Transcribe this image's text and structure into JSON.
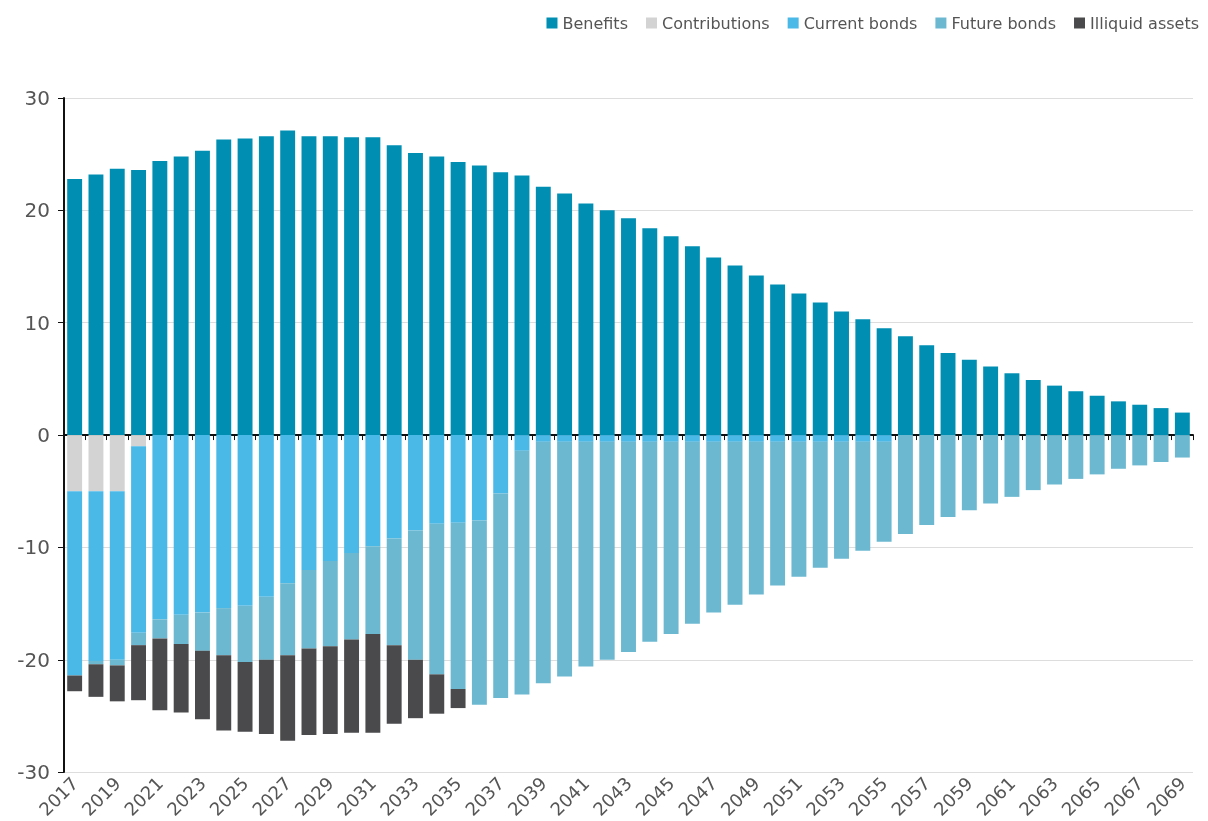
{
  "chart_data": {
    "type": "bar",
    "stacked": true,
    "grid": "y",
    "legend": "top right",
    "categories": [
      "2017",
      null,
      "2019",
      null,
      "2021",
      null,
      "2023",
      null,
      "2025",
      null,
      "2027",
      null,
      "2029",
      null,
      "2031",
      null,
      "2033",
      null,
      "2035",
      null,
      "2037",
      null,
      "2039",
      null,
      "2041",
      null,
      "2043",
      null,
      "2045",
      null,
      "2047",
      null,
      "2049",
      null,
      "2051",
      null,
      "2053",
      null,
      "2055",
      null,
      "2057",
      null,
      "2059",
      null,
      "2061",
      null,
      "2063",
      null,
      "2065",
      null,
      "2067",
      null,
      "2069"
    ],
    "ylim": [
      -30,
      30
    ],
    "yticks": [
      -30,
      -20,
      -10,
      0,
      10,
      20,
      30
    ],
    "series": [
      {
        "name": "Benefits",
        "color": "#008fb3",
        "values": [
          22.8,
          23.2,
          23.7,
          23.6,
          24.4,
          24.8,
          25.3,
          26.3,
          26.4,
          26.6,
          27.1,
          26.6,
          26.6,
          26.5,
          26.5,
          25.8,
          25.1,
          24.8,
          24.3,
          24.0,
          23.4,
          23.1,
          22.1,
          21.5,
          20.6,
          20.0,
          19.3,
          18.4,
          17.7,
          16.8,
          15.8,
          15.1,
          14.2,
          13.4,
          12.6,
          11.8,
          11.0,
          10.3,
          9.5,
          8.8,
          8.0,
          7.3,
          6.7,
          6.1,
          5.5,
          4.9,
          4.4,
          3.9,
          3.5,
          3.0,
          2.7,
          2.4,
          2.0
        ]
      },
      {
        "name": "Contributions",
        "color": "#d3d3d3",
        "values": [
          -5.0,
          -5.0,
          -5.0,
          -1.0,
          0,
          0,
          0,
          0,
          0,
          0,
          0,
          0,
          0,
          0,
          0,
          0,
          0,
          0,
          0,
          0,
          0,
          0,
          0,
          0,
          0,
          0,
          0,
          0,
          0,
          0,
          0,
          0,
          0,
          0,
          0,
          0,
          0,
          0,
          0,
          0,
          0,
          0,
          0,
          0,
          0,
          0,
          0,
          0,
          0,
          0,
          0,
          0,
          0
        ]
      },
      {
        "name": "Current bonds",
        "color": "#4bb9e8",
        "values": [
          -16.4,
          -15.1,
          -15.0,
          -16.6,
          -16.4,
          -16.0,
          -15.8,
          -15.4,
          -15.2,
          -14.4,
          -13.2,
          -12.0,
          -11.2,
          -10.5,
          -9.9,
          -9.2,
          -8.5,
          -7.9,
          -7.8,
          -7.6,
          -5.2,
          -1.4,
          -0.6,
          -0.6,
          -0.6,
          -0.6,
          -0.6,
          -0.6,
          -0.6,
          -0.6,
          -0.6,
          -0.6,
          -0.6,
          -0.6,
          -0.6,
          -0.6,
          -0.6,
          -0.6,
          -0.6,
          0,
          0,
          0,
          0,
          0,
          0,
          0,
          0,
          0,
          0,
          0,
          0,
          0,
          0
        ]
      },
      {
        "name": "Future bonds",
        "color": "#6bb8d0",
        "values": [
          0,
          -0.3,
          -0.5,
          -1.1,
          -1.7,
          -2.6,
          -3.4,
          -4.2,
          -5.0,
          -5.6,
          -6.4,
          -7.0,
          -7.6,
          -7.7,
          -7.8,
          -9.5,
          -11.5,
          -13.4,
          -14.8,
          -16.4,
          -18.2,
          -21.7,
          -21.5,
          -20.9,
          -20.0,
          -19.4,
          -18.7,
          -17.8,
          -17.1,
          -16.2,
          -15.2,
          -14.5,
          -13.6,
          -12.8,
          -12.0,
          -11.2,
          -10.4,
          -9.7,
          -8.9,
          -8.8,
          -8.0,
          -7.3,
          -6.7,
          -6.1,
          -5.5,
          -4.9,
          -4.4,
          -3.9,
          -3.5,
          -3.0,
          -2.7,
          -2.4,
          -2.0
        ]
      },
      {
        "name": "Illiquid assets",
        "color": "#4a4a4c",
        "values": [
          -1.4,
          -2.9,
          -3.2,
          -4.9,
          -6.4,
          -6.1,
          -6.1,
          -6.7,
          -6.2,
          -6.6,
          -7.6,
          -7.7,
          -7.8,
          -8.3,
          -8.8,
          -7.0,
          -5.2,
          -3.5,
          -1.7,
          0,
          0,
          0,
          0,
          0,
          0,
          0,
          0,
          0,
          0,
          0,
          0,
          0,
          0,
          0,
          0,
          0,
          0,
          0,
          0,
          0,
          0,
          0,
          0,
          0,
          0,
          0,
          0,
          0,
          0,
          0,
          0,
          0,
          0
        ]
      }
    ]
  }
}
